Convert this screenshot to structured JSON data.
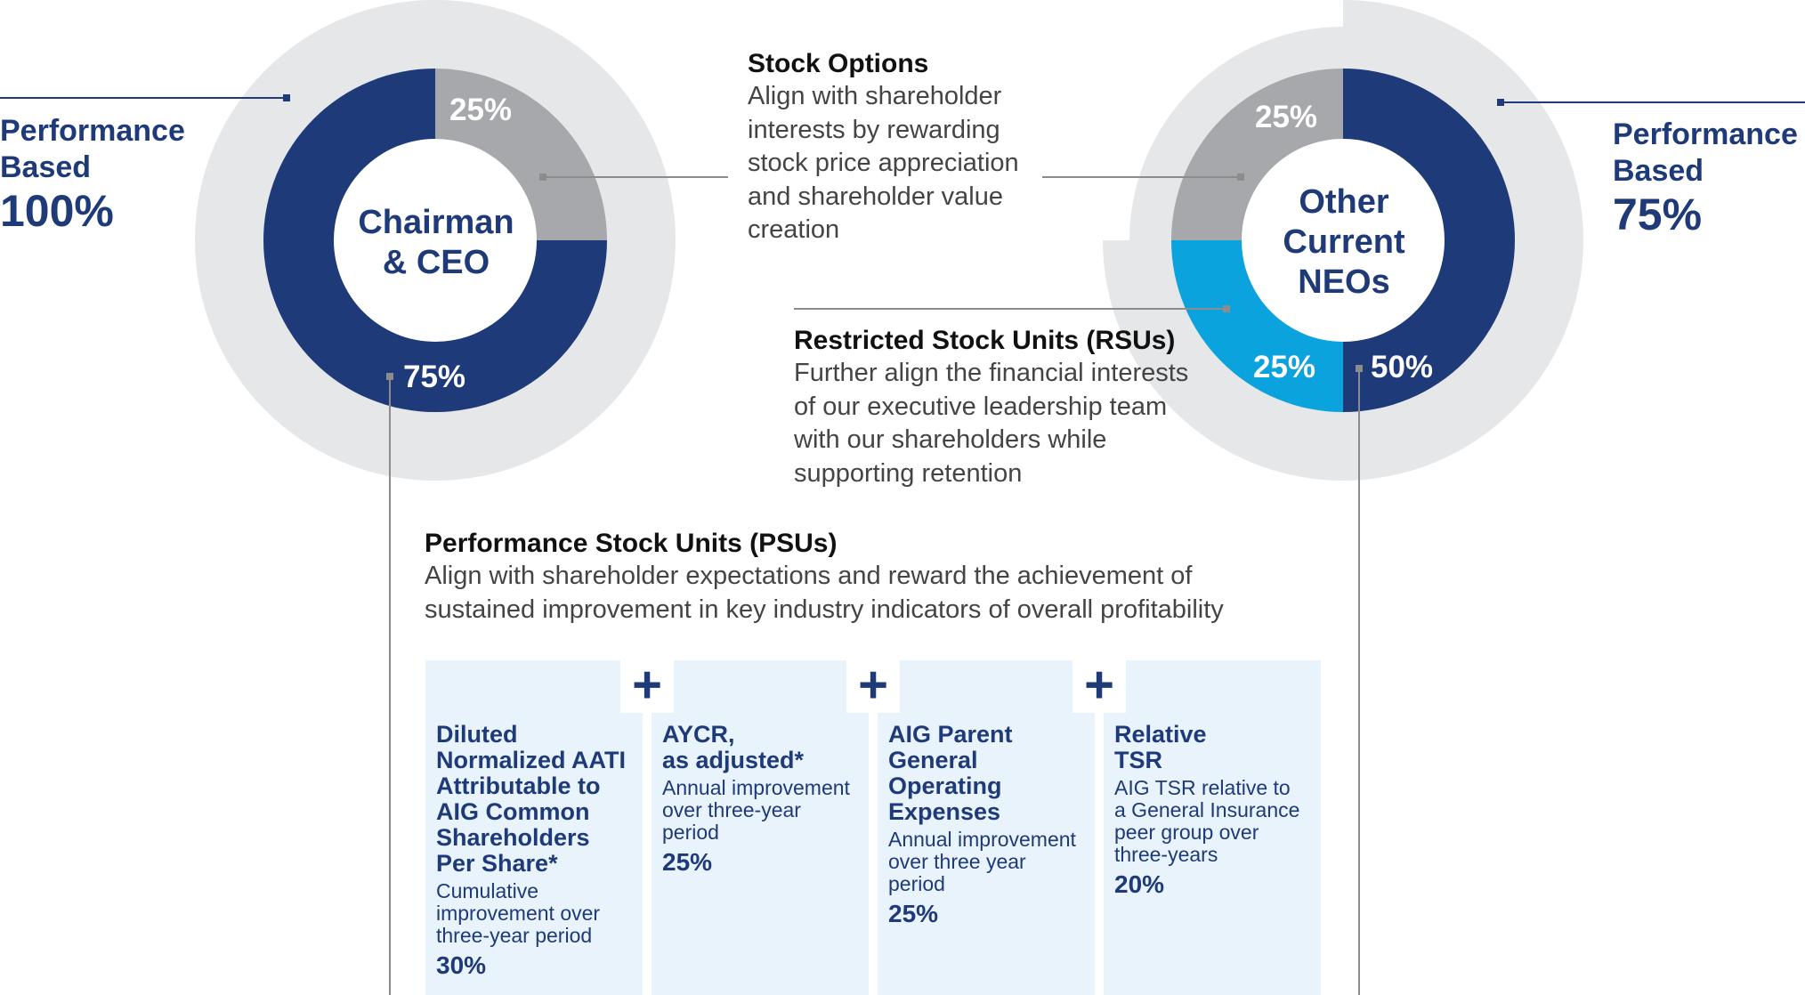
{
  "chart_data": [
    {
      "type": "pie",
      "title": "Chairman & CEO",
      "center_label": "Chairman & CEO",
      "slices": [
        {
          "name": "Stock Options",
          "value": 25,
          "label": "25%",
          "color": "#a6a8ab"
        },
        {
          "name": "Performance Stock Units (PSUs)",
          "value": 75,
          "label": "75%",
          "color": "#1f3a78"
        }
      ],
      "performance_based": {
        "label": "Performance Based",
        "value": 100,
        "text": "100%"
      }
    },
    {
      "type": "pie",
      "title": "Other Current NEOs",
      "center_label": "Other Current NEOs",
      "slices": [
        {
          "name": "Performance Stock Units (PSUs)",
          "value": 50,
          "label": "50%",
          "color": "#1f3a78"
        },
        {
          "name": "Restricted Stock Units (RSUs)",
          "value": 25,
          "label": "25%",
          "color": "#0ba3dd"
        },
        {
          "name": "Stock Options",
          "value": 25,
          "label": "25%",
          "color": "#a6a8ab"
        }
      ],
      "performance_based": {
        "label": "Performance Based",
        "value": 75,
        "text": "75%"
      }
    }
  ],
  "colors": {
    "navy": "#1f3a78",
    "gray_slice": "#a6a8ab",
    "blue_slice": "#0ba3dd",
    "outer_ring": "#e6e7e8",
    "callout_line": "#8c8c8c",
    "box_fill": "#e8f3fb"
  },
  "ceo": {
    "center_line1": "Chairman",
    "center_line2": "& CEO",
    "perf_line1": "Performance",
    "perf_line2": "Based",
    "perf_value": "100%"
  },
  "neo": {
    "center_line1": "Other",
    "center_line2": "Current",
    "center_line3": "NEOs",
    "perf_line1": "Performance",
    "perf_line2": "Based",
    "perf_value": "75%"
  },
  "stock_options": {
    "title": "Stock Options",
    "lines": [
      "Align with shareholder",
      "interests by rewarding",
      "stock price appreciation",
      "and shareholder value",
      "creation"
    ]
  },
  "rsus": {
    "title": "Restricted Stock Units (RSUs)",
    "lines": [
      "Further align the financial interests",
      "of our executive leadership team",
      "with our shareholders while",
      "supporting retention"
    ]
  },
  "psus": {
    "title": "Performance Stock Units (PSUs)",
    "lines": [
      "Align with shareholder expectations and reward the achievement of",
      "sustained improvement in key industry indicators of overall profitability"
    ]
  },
  "plus_symbol": "+",
  "metrics": [
    {
      "title_lines": [
        "Diluted",
        "Normalized AATI",
        "Attributable to",
        "AIG Common",
        "Shareholders",
        "Per Share*"
      ],
      "desc_lines": [
        "Cumulative",
        "improvement over",
        "three-year period"
      ],
      "weight": "30%"
    },
    {
      "title_lines": [
        "AYCR,",
        "as adjusted*"
      ],
      "desc_lines": [
        "Annual improvement",
        "over three-year",
        "period"
      ],
      "weight": "25%"
    },
    {
      "title_lines": [
        "AIG Parent",
        "General",
        "Operating",
        "Expenses"
      ],
      "desc_lines": [
        "Annual improvement",
        "over three year",
        "period"
      ],
      "weight": "25%"
    },
    {
      "title_lines": [
        "Relative",
        "TSR"
      ],
      "desc_lines": [
        "AIG TSR relative to",
        "a General Insurance",
        "peer group over",
        "three-years"
      ],
      "weight": "20%"
    }
  ]
}
